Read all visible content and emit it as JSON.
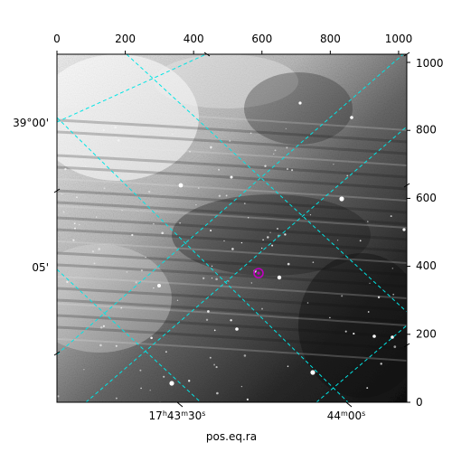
{
  "figure": {
    "xlabel": "pos.eq.ra",
    "pixel_x_ticks": [
      "0",
      "200",
      "400",
      "600",
      "800",
      "1000"
    ],
    "pixel_y_ticks": [
      "0",
      "200",
      "400",
      "600",
      "800",
      "1000"
    ],
    "dec_ticks": [
      "39°00'",
      "05'"
    ],
    "ra_ticks": [
      "17h43m30s",
      "44m00s"
    ],
    "grid_color": "#00e5e5",
    "marker_color": "#c000c0"
  },
  "chart_data": {
    "type": "scatter",
    "title": "",
    "xlabel": "pos.eq.ra",
    "ylabel": "",
    "xlim": [
      0,
      1024
    ],
    "ylim": [
      0,
      1024
    ],
    "x_ticks": [
      0,
      200,
      400,
      600,
      800,
      1000
    ],
    "y_ticks": [
      0,
      200,
      400,
      600,
      800,
      1000
    ],
    "dec_tick_labels": [
      "39°00'",
      "05'"
    ],
    "ra_tick_labels": [
      "17h43m30s",
      "44m00s"
    ],
    "grid": true,
    "marker": {
      "x": 590,
      "y": 380
    }
  }
}
